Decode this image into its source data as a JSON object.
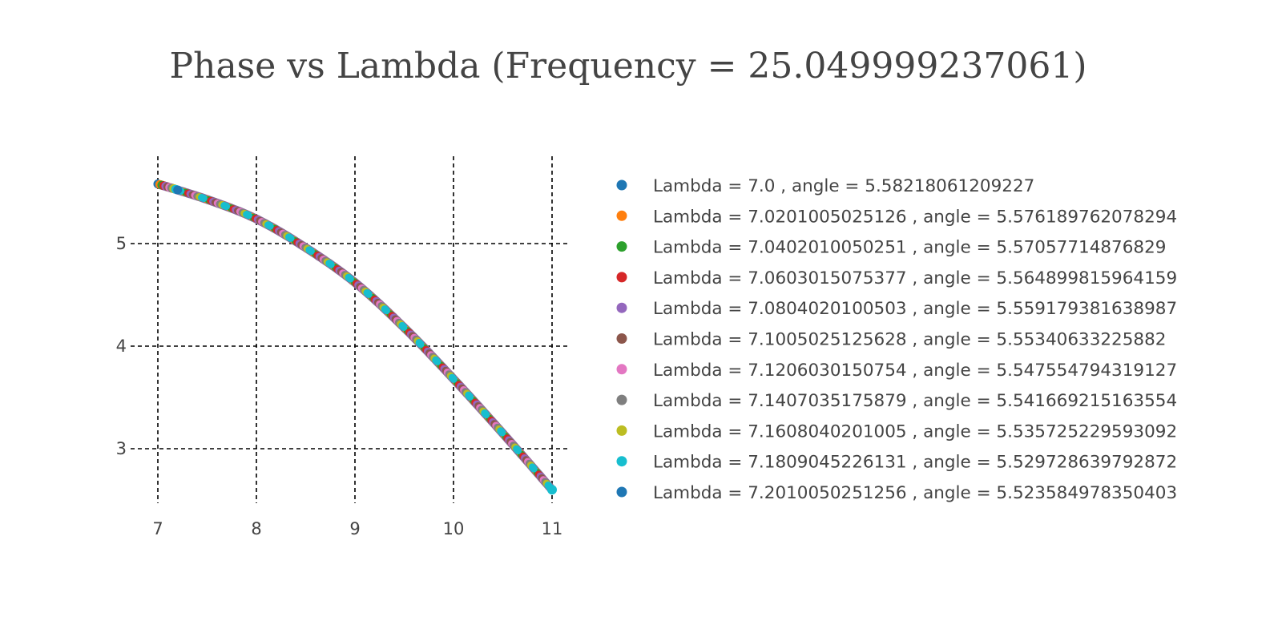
{
  "chart_data": {
    "type": "scatter",
    "title": "Phase vs Lambda (Frequency = 25.049999237061)",
    "xlabel": "",
    "ylabel": "",
    "xlim": [
      7,
      11
    ],
    "ylim": [
      2.5,
      5.75
    ],
    "x_ticks": [
      7,
      8,
      9,
      10,
      11
    ],
    "x_tick_labels": [
      "7",
      "8",
      "9",
      "10",
      "11"
    ],
    "y_ticks": [
      3,
      4,
      5
    ],
    "y_tick_labels": [
      "3",
      "4",
      "5"
    ],
    "grid": true,
    "grid_style": "dashed",
    "legend_position": "right",
    "curve": {
      "x": [
        7.0,
        7.5,
        8.0,
        8.5,
        9.0,
        9.5,
        10.0,
        10.5,
        11.0
      ],
      "y": [
        5.58,
        5.43,
        5.24,
        4.96,
        4.62,
        4.18,
        3.68,
        3.15,
        2.6
      ]
    },
    "series": [
      {
        "name": "Lambda = 7.0 , angle = 5.58218061209227",
        "x": [
          7.0
        ],
        "y": [
          5.58218061209227
        ],
        "color": "#1f77b4"
      },
      {
        "name": "Lambda = 7.0201005025126 , angle = 5.576189762078294",
        "x": [
          7.0201005025126
        ],
        "y": [
          5.576189762078294
        ],
        "color": "#ff7f0e"
      },
      {
        "name": "Lambda = 7.0402010050251 , angle = 5.57057714876829",
        "x": [
          7.0402010050251
        ],
        "y": [
          5.57057714876829
        ],
        "color": "#2ca02c"
      },
      {
        "name": "Lambda = 7.0603015075377 , angle = 5.564899815964159",
        "x": [
          7.0603015075377
        ],
        "y": [
          5.564899815964159
        ],
        "color": "#d62728"
      },
      {
        "name": "Lambda = 7.0804020100503 , angle = 5.559179381638987",
        "x": [
          7.0804020100503
        ],
        "y": [
          5.559179381638987
        ],
        "color": "#9467bd"
      },
      {
        "name": "Lambda = 7.1005025125628 , angle = 5.55340633225882",
        "x": [
          7.1005025125628
        ],
        "y": [
          5.55340633225882
        ],
        "color": "#8c564b"
      },
      {
        "name": "Lambda = 7.1206030150754 , angle = 5.547554794319127",
        "x": [
          7.1206030150754
        ],
        "y": [
          5.547554794319127
        ],
        "color": "#e377c2"
      },
      {
        "name": "Lambda = 7.1407035175879 , angle = 5.541669215163554",
        "x": [
          7.1407035175879
        ],
        "y": [
          5.541669215163554
        ],
        "color": "#7f7f7f"
      },
      {
        "name": "Lambda = 7.1608040201005 , angle = 5.535725229593092",
        "x": [
          7.1608040201005
        ],
        "y": [
          5.535725229593092
        ],
        "color": "#bcbd22"
      },
      {
        "name": "Lambda = 7.1809045226131 , angle = 5.529728639792872",
        "x": [
          7.1809045226131
        ],
        "y": [
          5.529728639792872
        ],
        "color": "#17becf"
      },
      {
        "name": "Lambda = 7.2010050251256 , angle = 5.523584978350403",
        "x": [
          7.2010050251256
        ],
        "y": [
          5.523584978350403
        ],
        "color": "#1f77b4"
      }
    ],
    "palette": [
      "#1f77b4",
      "#ff7f0e",
      "#2ca02c",
      "#d62728",
      "#9467bd",
      "#8c564b",
      "#e377c2",
      "#7f7f7f",
      "#bcbd22",
      "#17becf"
    ]
  }
}
